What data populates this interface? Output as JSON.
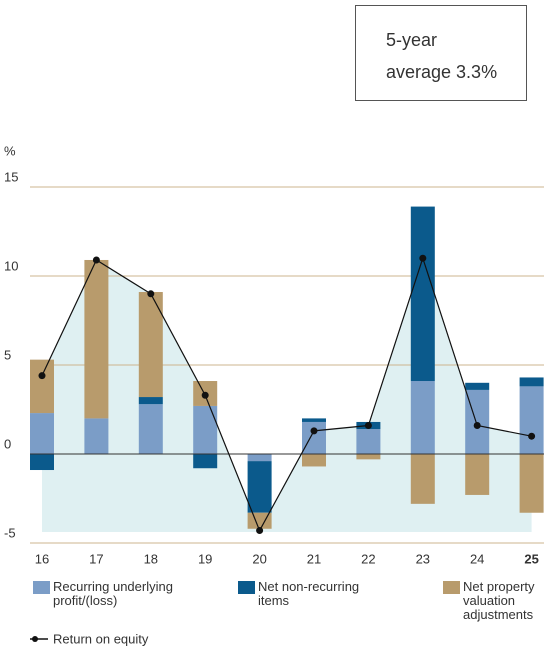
{
  "chart_data": {
    "type": "stacked_bar_line",
    "y_unit_label": "%",
    "annotation": [
      "5-year",
      "average 3.3%"
    ],
    "categories": [
      "16",
      "17",
      "18",
      "19",
      "20",
      "21",
      "22",
      "23",
      "24",
      "25"
    ],
    "series": [
      {
        "name": "Recurring underlying profit/(loss)",
        "color": "#7b9dc7",
        "values": [
          2.3,
          2.0,
          2.8,
          2.7,
          -0.4,
          1.8,
          1.4,
          4.1,
          3.6,
          3.8
        ]
      },
      {
        "name": "Net non-recurring items",
        "color": "#0b5a8c",
        "values": [
          -0.9,
          0,
          0.4,
          -0.8,
          -2.9,
          0.2,
          0.4,
          9.8,
          0.4,
          0.5
        ]
      },
      {
        "name": "Net property valuation adjustments",
        "color": "#b89b6c",
        "values": [
          3.0,
          8.9,
          5.9,
          1.4,
          -0.9,
          -0.7,
          -0.3,
          -2.8,
          -2.3,
          -3.3
        ]
      }
    ],
    "line": {
      "name": "Return on equity",
      "color": "#111111",
      "values": [
        4.4,
        10.9,
        9.0,
        3.3,
        -4.3,
        1.3,
        1.6,
        11.0,
        1.6,
        1.0
      ]
    },
    "area_color": "#dff0f2",
    "ylim": [
      -5,
      15
    ],
    "yticks": [
      -5,
      0,
      5,
      10,
      15
    ],
    "grid": true,
    "grid_color": "#cdb58f"
  }
}
